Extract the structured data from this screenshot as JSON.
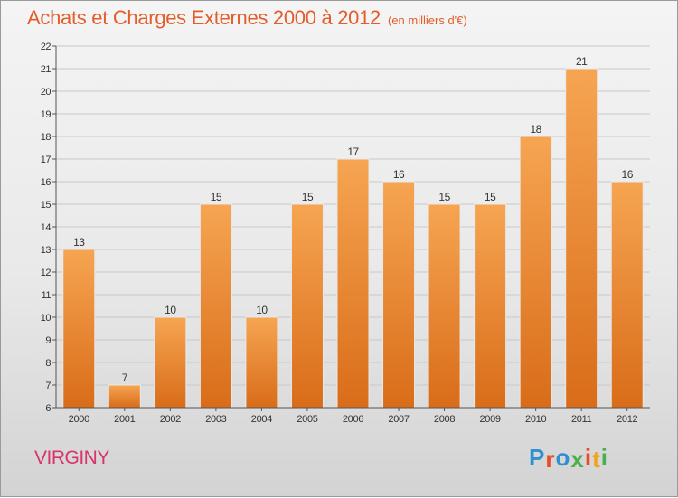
{
  "header": {
    "title": "Achats et Charges Externes 2000 à 2012",
    "unit": "(en milliers d'€)"
  },
  "footer": {
    "commune": "VIRGINY",
    "logo": [
      "P",
      "r",
      "o",
      "x",
      "i",
      "t",
      "i"
    ],
    "logo_colors": [
      "#2f8fd3",
      "#e94b25",
      "#2f8fd3",
      "#49b04a",
      "#e94b25",
      "#f2a21b",
      "#49b04a"
    ]
  },
  "chart_data": {
    "type": "bar",
    "title": "Achats et Charges Externes 2000 à 2012",
    "subtitle": "(en milliers d'€)",
    "categories": [
      "2000",
      "2001",
      "2002",
      "2003",
      "2004",
      "2005",
      "2006",
      "2007",
      "2008",
      "2009",
      "2010",
      "2011",
      "2012"
    ],
    "values": [
      13,
      7,
      10,
      15,
      10,
      15,
      17,
      16,
      15,
      15,
      18,
      21,
      16
    ],
    "data_labels": [
      "13",
      "7",
      "10",
      "15",
      "10",
      "15",
      "17",
      "16",
      "15",
      "15",
      "18",
      "21",
      "16"
    ],
    "ylim": [
      6,
      22
    ],
    "yticks": [
      "6",
      "7",
      "8",
      "9",
      "10",
      "11",
      "12",
      "13",
      "14",
      "15",
      "16",
      "17",
      "18",
      "19",
      "20",
      "21",
      "22"
    ],
    "grid": true,
    "colors": {
      "bar_top": "#f6a552",
      "bar_bottom": "#d96c19",
      "grid": "#c8c8c8",
      "text": "#333333",
      "title": "#e35d2a"
    }
  }
}
